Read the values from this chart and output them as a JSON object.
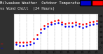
{
  "title": "Milwaukee Weather  Outdoor Temperature",
  "subtitle": "vs Wind Chill  (24 Hours)",
  "bg_color": "#c8c8c8",
  "plot_bg": "#ffffff",
  "fig_bg": "#303030",
  "grid_color": "#888888",
  "temp_color": "#ff0000",
  "wind_color": "#0000ee",
  "legend_temp_color": "#ff0000",
  "legend_wind_color": "#0000cc",
  "hours": [
    0,
    1,
    2,
    3,
    4,
    5,
    6,
    7,
    8,
    9,
    10,
    11,
    12,
    13,
    14,
    15,
    16,
    17,
    18,
    19,
    20,
    21,
    22,
    23
  ],
  "temp": [
    10,
    9,
    9,
    10,
    11,
    16,
    24,
    35,
    42,
    46,
    49,
    51,
    52,
    49,
    46,
    47,
    47,
    48,
    46,
    44,
    46,
    48,
    50,
    51
  ],
  "wind_chill": [
    5,
    3,
    3,
    4,
    5,
    8,
    17,
    28,
    36,
    40,
    44,
    46,
    47,
    44,
    40,
    41,
    41,
    43,
    41,
    38,
    40,
    43,
    45,
    46
  ],
  "ylim": [
    -5,
    65
  ],
  "ytick_vals": [
    0,
    10,
    20,
    30,
    40,
    50,
    60
  ],
  "ytick_labels": [
    "0",
    "10",
    "20",
    "30",
    "40",
    "50",
    "60"
  ],
  "xtick_vals": [
    1,
    3,
    5,
    7,
    9,
    11,
    13,
    15,
    17,
    19,
    21,
    23
  ],
  "title_fontsize": 3.8,
  "tick_fontsize": 3.2,
  "marker_size": 1.8
}
